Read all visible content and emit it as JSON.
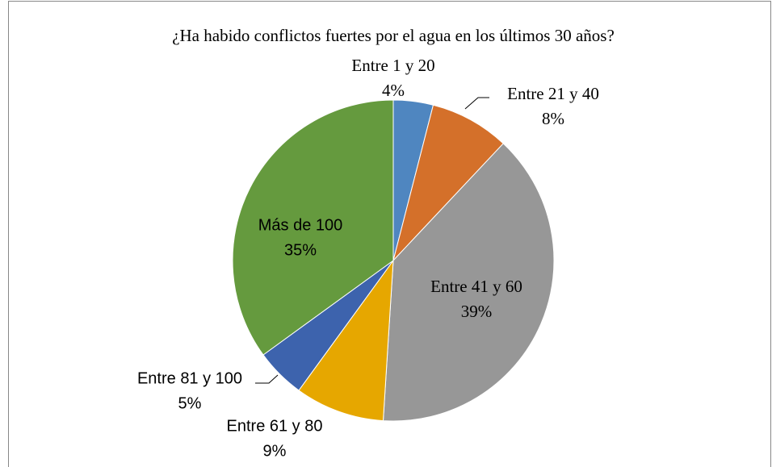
{
  "chart_data": {
    "type": "pie",
    "title": "¿Ha habido conflictos fuertes por el agua en los últimos 30 años?",
    "categories": [
      "Entre 1 y 20",
      "Entre 21 y 40",
      "Entre 41 y 60",
      "Entre 61 y 80",
      "Entre 81 y 100",
      "Más de 100"
    ],
    "values": [
      4,
      8,
      39,
      9,
      5,
      35
    ],
    "value_labels": [
      "4%",
      "8%",
      "39%",
      "9%",
      "5%",
      "35%"
    ],
    "colors": [
      "#4f86c0",
      "#d4702a",
      "#979797",
      "#e6a700",
      "#3d63ad",
      "#659a3e"
    ]
  }
}
